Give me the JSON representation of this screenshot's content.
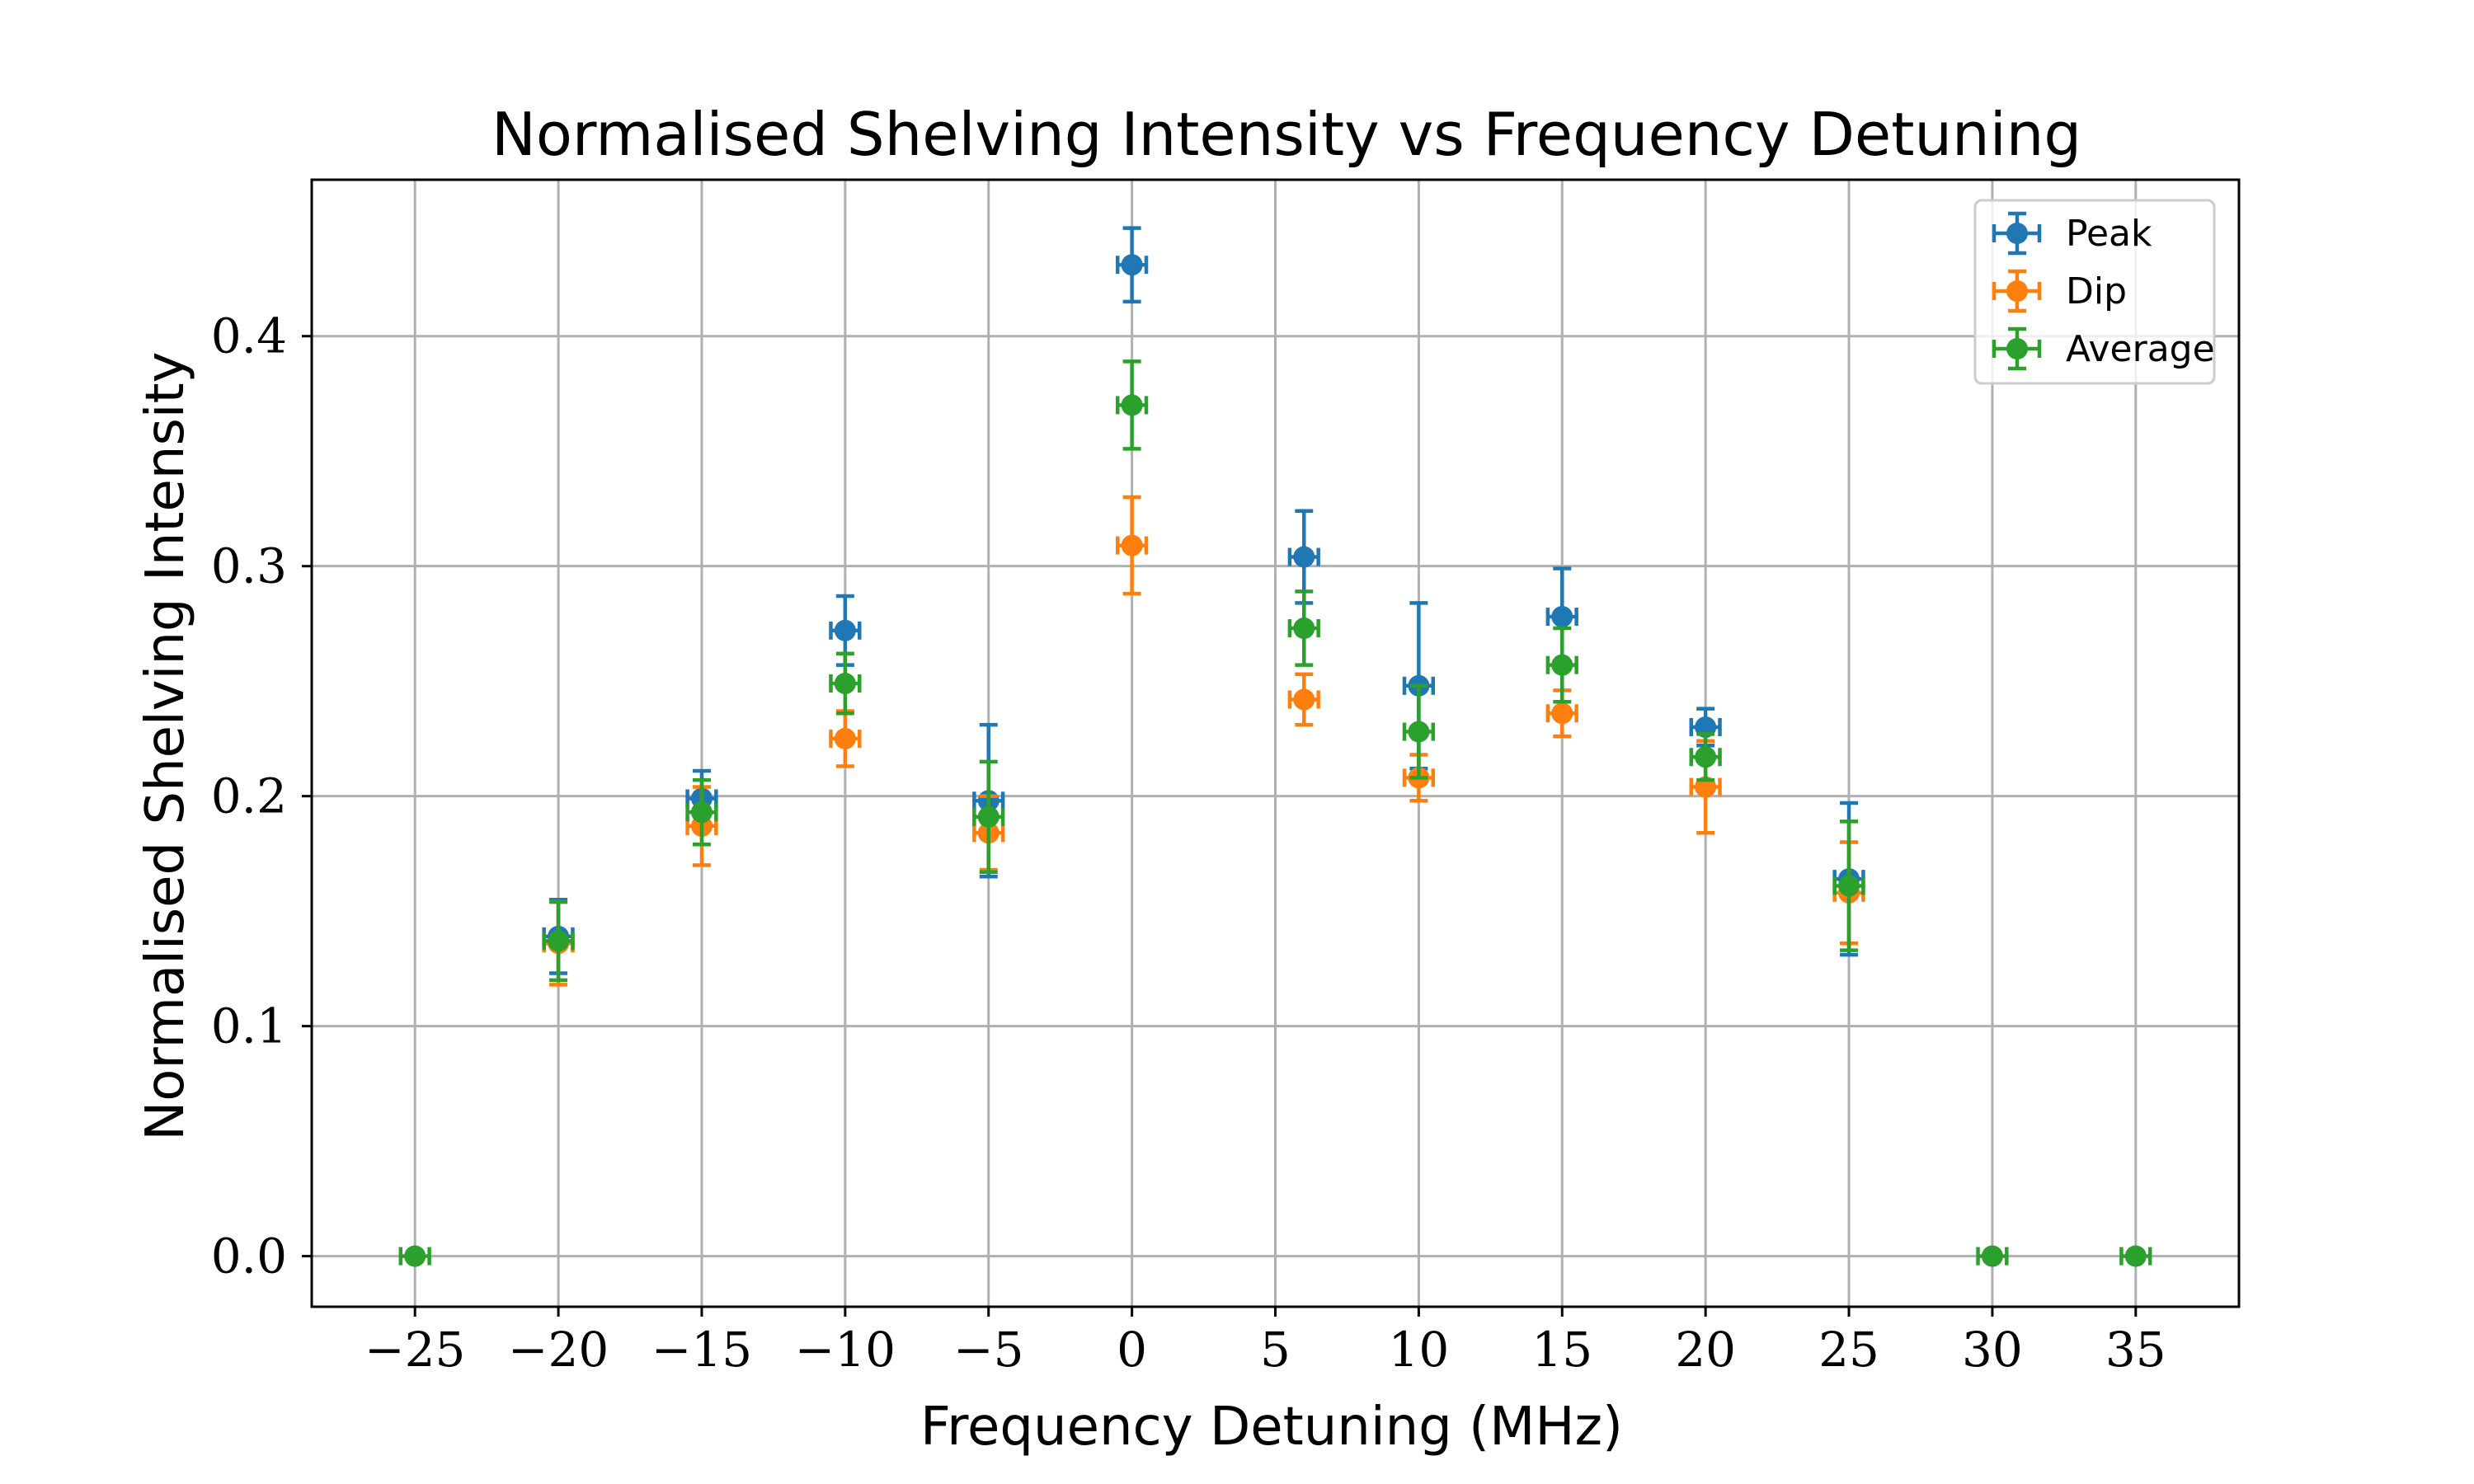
{
  "chart_data": {
    "type": "scatter",
    "title": "Normalised Shelving Intensity vs Frequency Detuning",
    "xlabel": "Frequency Detuning (MHz)",
    "ylabel": "Normalised Shelving Intensity",
    "xlim": [
      -28.6,
      38.6
    ],
    "ylim": [
      -0.022,
      0.468
    ],
    "xticks": [
      -25,
      -20,
      -15,
      -10,
      -5,
      0,
      5,
      10,
      15,
      20,
      25,
      30,
      35
    ],
    "xtick_labels": [
      "−25",
      "−20",
      "−15",
      "−10",
      "−5",
      "0",
      "5",
      "10",
      "15",
      "20",
      "25",
      "30",
      "35"
    ],
    "yticks": [
      0.0,
      0.1,
      0.2,
      0.3,
      0.4
    ],
    "ytick_labels": [
      "0.0",
      "0.1",
      "0.2",
      "0.3",
      "0.4"
    ],
    "grid": true,
    "legend_position": "top-right",
    "x_error": 0.5,
    "series": [
      {
        "name": "Peak",
        "color": "#1f77b4",
        "points": [
          {
            "x": -20,
            "y": 0.139,
            "yerr": 0.016
          },
          {
            "x": -15,
            "y": 0.199,
            "yerr": 0.012
          },
          {
            "x": -10,
            "y": 0.272,
            "yerr": 0.015
          },
          {
            "x": -5,
            "y": 0.198,
            "yerr": 0.033
          },
          {
            "x": 0,
            "y": 0.431,
            "yerr": 0.016
          },
          {
            "x": 6,
            "y": 0.304,
            "yerr": 0.02
          },
          {
            "x": 10,
            "y": 0.248,
            "yerr": 0.036
          },
          {
            "x": 15,
            "y": 0.278,
            "yerr": 0.021
          },
          {
            "x": 20,
            "y": 0.23,
            "yerr": 0.008
          },
          {
            "x": 25,
            "y": 0.164,
            "yerr": 0.033
          }
        ]
      },
      {
        "name": "Dip",
        "color": "#ff7f0e",
        "points": [
          {
            "x": -20,
            "y": 0.136,
            "yerr": 0.018
          },
          {
            "x": -15,
            "y": 0.187,
            "yerr": 0.017
          },
          {
            "x": -10,
            "y": 0.225,
            "yerr": 0.012
          },
          {
            "x": -5,
            "y": 0.184,
            "yerr": 0.016
          },
          {
            "x": 0,
            "y": 0.309,
            "yerr": 0.021
          },
          {
            "x": 6,
            "y": 0.242,
            "yerr": 0.011
          },
          {
            "x": 10,
            "y": 0.208,
            "yerr": 0.01
          },
          {
            "x": 15,
            "y": 0.236,
            "yerr": 0.01
          },
          {
            "x": 20,
            "y": 0.204,
            "yerr": 0.02
          },
          {
            "x": 25,
            "y": 0.158,
            "yerr": 0.022
          }
        ]
      },
      {
        "name": "Average",
        "color": "#2ca02c",
        "points": [
          {
            "x": -25,
            "y": 0.0,
            "yerr": 0.0
          },
          {
            "x": -20,
            "y": 0.137,
            "yerr": 0.017
          },
          {
            "x": -15,
            "y": 0.193,
            "yerr": 0.014
          },
          {
            "x": -10,
            "y": 0.249,
            "yerr": 0.013
          },
          {
            "x": -5,
            "y": 0.191,
            "yerr": 0.024
          },
          {
            "x": 0,
            "y": 0.37,
            "yerr": 0.019
          },
          {
            "x": 6,
            "y": 0.273,
            "yerr": 0.016
          },
          {
            "x": 10,
            "y": 0.228,
            "yerr": 0.02
          },
          {
            "x": 15,
            "y": 0.257,
            "yerr": 0.016
          },
          {
            "x": 20,
            "y": 0.217,
            "yerr": 0.01
          },
          {
            "x": 25,
            "y": 0.161,
            "yerr": 0.028
          },
          {
            "x": 30,
            "y": 0.0,
            "yerr": 0.0
          },
          {
            "x": 35,
            "y": 0.0,
            "yerr": 0.0
          }
        ]
      }
    ]
  }
}
